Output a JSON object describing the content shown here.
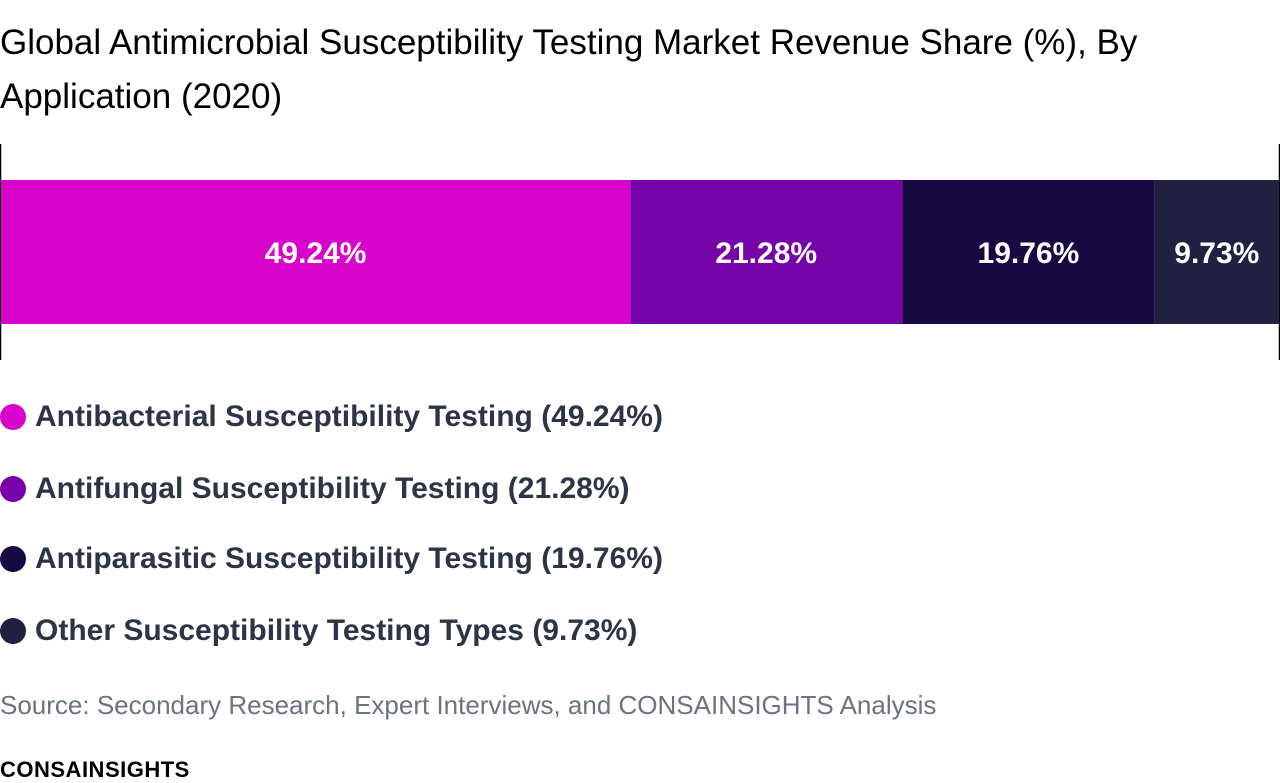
{
  "chart_data": {
    "type": "bar",
    "orientation": "horizontal-stacked",
    "title": "Global Antimicrobial Susceptibility Testing Market Revenue Share (%), By Application (2020)",
    "categories": [
      "Antibacterial Susceptibility Testing",
      "Antifungal Susceptibility Testing",
      "Antiparasitic Susceptibility Testing",
      "Other Susceptibility Testing Types"
    ],
    "values": [
      49.24,
      21.28,
      19.76,
      9.73
    ],
    "data_labels": [
      "49.24%",
      "21.28%",
      "19.76%",
      "9.73%"
    ],
    "legend_labels": [
      "Antibacterial Susceptibility Testing (49.24%)",
      "Antifungal Susceptibility Testing (21.28%)",
      "Antiparasitic Susceptibility Testing (19.76%)",
      "Other Susceptibility Testing Types (9.73%)"
    ],
    "colors": [
      "#d804cb",
      "#7503a8",
      "#170a42",
      "#212040"
    ],
    "xlim": [
      0,
      100
    ],
    "grid": false,
    "legend_position": "bottom"
  },
  "source": "Source: Secondary Research, Expert Interviews, and CONSAINSIGHTS Analysis",
  "brand": "CONSAINSIGHTS"
}
